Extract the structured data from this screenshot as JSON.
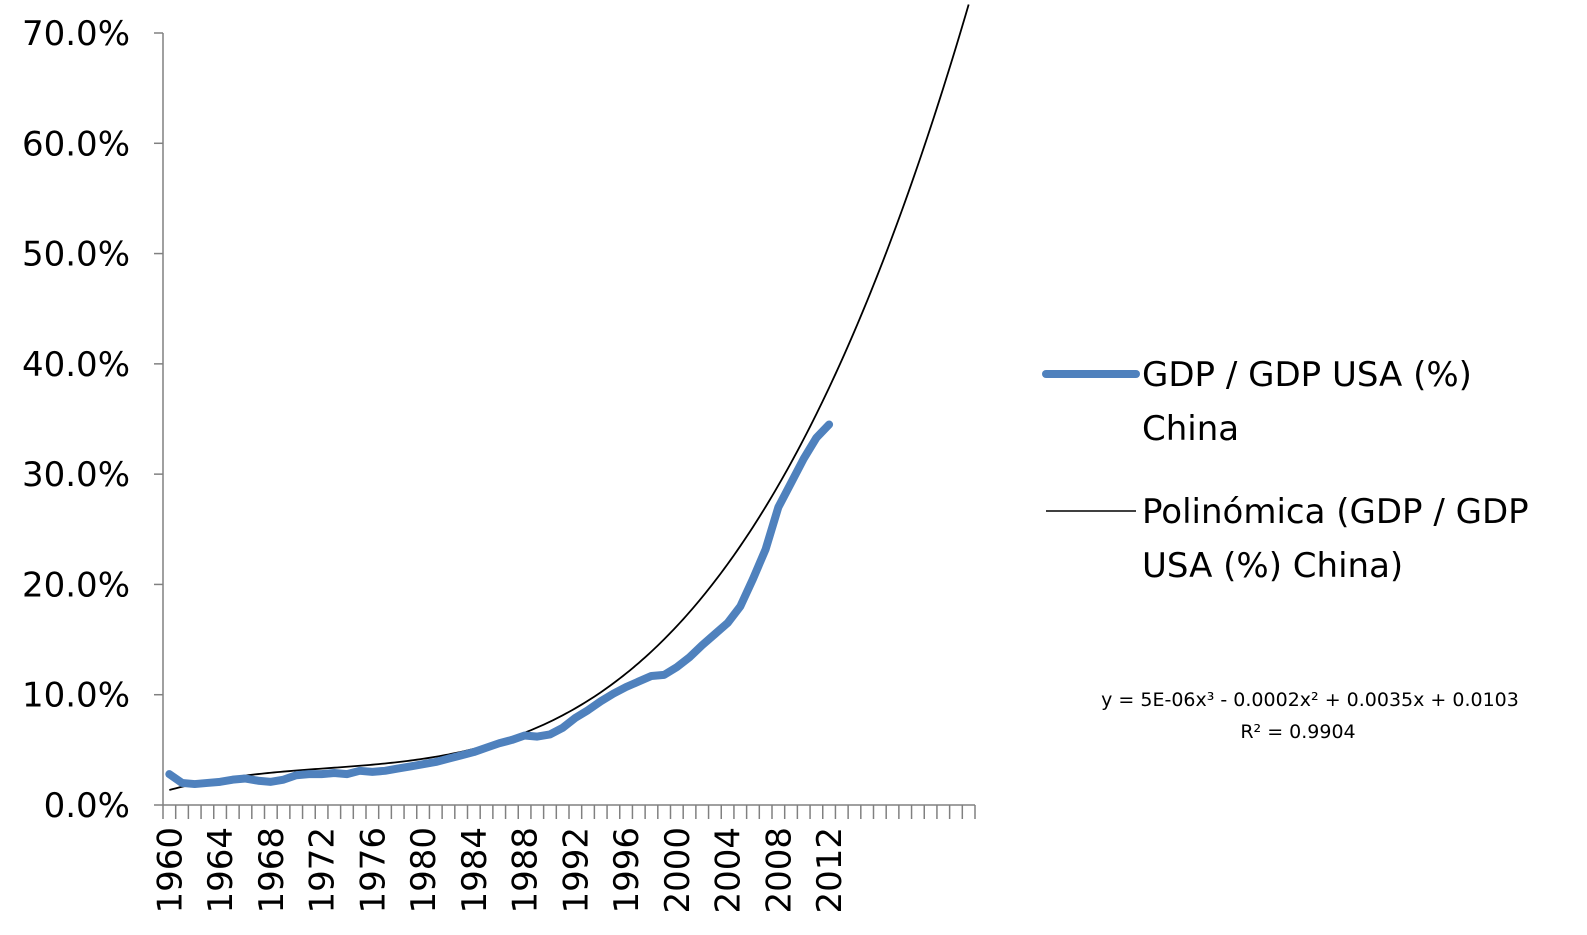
{
  "chart_data": {
    "type": "line",
    "title": "",
    "xlabel": "",
    "ylabel": "",
    "x_tick_labels": [
      "1960",
      "1964",
      "1968",
      "1972",
      "1976",
      "1980",
      "1984",
      "1988",
      "1992",
      "1996",
      "2000",
      "2004",
      "2008",
      "2012"
    ],
    "x_range": [
      1960,
      2023
    ],
    "ylim": [
      0.0,
      0.7
    ],
    "y_ticks": [
      "0.0%",
      "10.0%",
      "20.0%",
      "30.0%",
      "40.0%",
      "50.0%",
      "60.0%",
      "70.0%"
    ],
    "y_tick_values": [
      0.0,
      0.1,
      0.2,
      0.3,
      0.4,
      0.5,
      0.6,
      0.7
    ],
    "grid": false,
    "legend_position": "right",
    "series": [
      {
        "name": "GDP / GDP USA (%) China",
        "color": "#4F81BD",
        "style": "thick",
        "x": [
          1960,
          1961,
          1962,
          1963,
          1964,
          1965,
          1966,
          1967,
          1968,
          1969,
          1970,
          1971,
          1972,
          1973,
          1974,
          1975,
          1976,
          1977,
          1978,
          1979,
          1980,
          1981,
          1982,
          1983,
          1984,
          1985,
          1986,
          1987,
          1988,
          1989,
          1990,
          1991,
          1992,
          1993,
          1994,
          1995,
          1996,
          1997,
          1998,
          1999,
          2000,
          2001,
          2002,
          2003,
          2004,
          2005,
          2006,
          2007,
          2008,
          2009,
          2010,
          2011,
          2012
        ],
        "values": [
          0.028,
          0.02,
          0.019,
          0.02,
          0.021,
          0.023,
          0.024,
          0.022,
          0.021,
          0.023,
          0.027,
          0.028,
          0.028,
          0.029,
          0.028,
          0.031,
          0.03,
          0.031,
          0.033,
          0.035,
          0.037,
          0.039,
          0.042,
          0.045,
          0.048,
          0.052,
          0.056,
          0.059,
          0.063,
          0.062,
          0.064,
          0.07,
          0.079,
          0.086,
          0.094,
          0.101,
          0.107,
          0.112,
          0.117,
          0.118,
          0.125,
          0.134,
          0.145,
          0.155,
          0.165,
          0.18,
          0.205,
          0.232,
          0.27,
          0.292,
          0.314,
          0.333,
          0.345
        ]
      },
      {
        "name": "Polinómica (GDP / GDP USA (%) China)",
        "color": "#000000",
        "style": "thin",
        "trendline": {
          "type": "polynomial",
          "degree": 3,
          "coefficients": [
            5e-06,
            -0.0002,
            0.0035,
            0.0103
          ],
          "index_start_year": 1959,
          "x_start": 1960,
          "x_end": 2023
        }
      }
    ],
    "annotations": {
      "equation": "y = 5E-06x³ - 0.0002x² + 0.0035x + 0.0103",
      "r_squared": "R² = 0.9904"
    }
  }
}
